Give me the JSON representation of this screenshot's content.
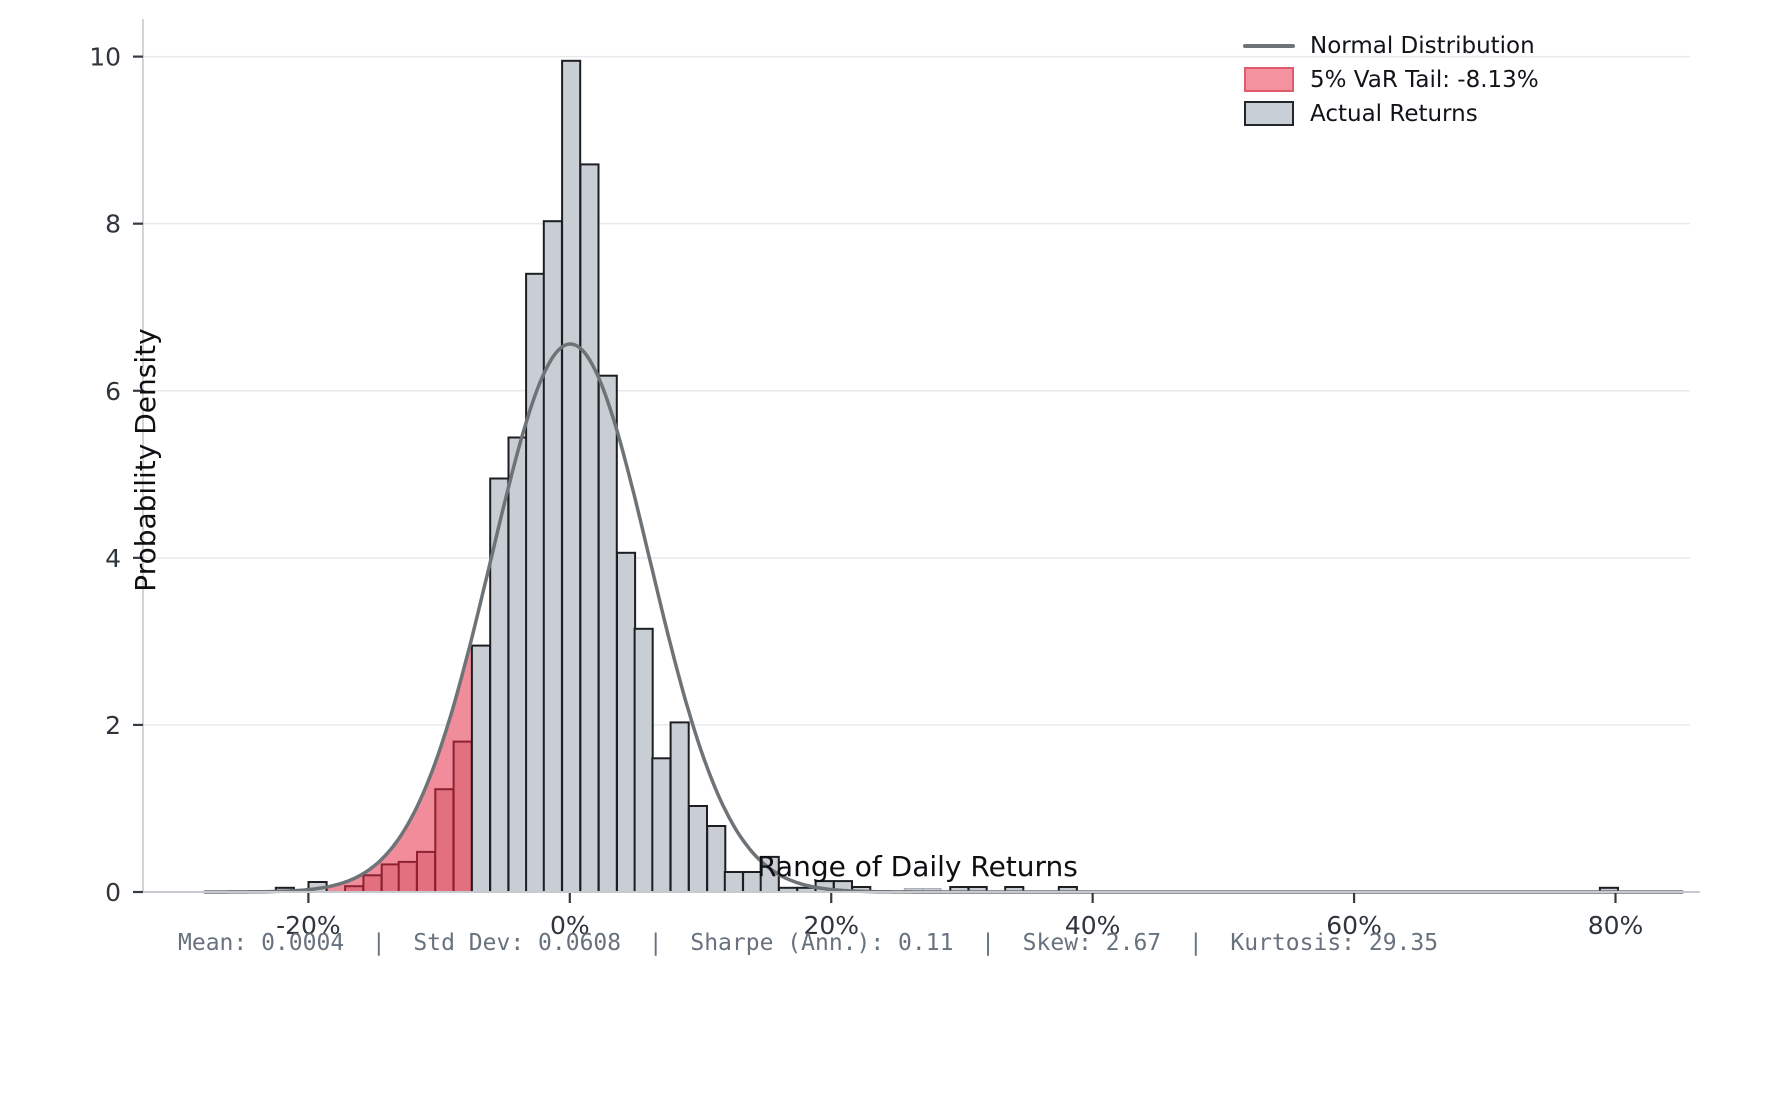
{
  "legend": {
    "items": [
      {
        "label": "Normal Distribution",
        "type": "line",
        "color": "#6e7378",
        "border": "#6e7378"
      },
      {
        "label": "5% VaR Tail: -8.13%",
        "type": "patch",
        "color": "#f4929f",
        "border": "#df5a6b"
      },
      {
        "label": "Actual Returns",
        "type": "patch",
        "color": "#c9cfd6",
        "border": "#23262a"
      }
    ]
  },
  "stats_line": "Mean: 0.0004  |  Std Dev: 0.0608  |  Sharpe (Ann.): 0.11  |  Skew: 2.67  |  Kurtosis: 29.35",
  "stats": {
    "mean": "0.0004",
    "std_dev": "0.0608",
    "sharpe_ann": "0.11",
    "skew": "2.67",
    "kurtosis": "29.35"
  },
  "chart_data": {
    "type": "bar",
    "subtype": "histogram-with-normal-overlay",
    "title": "",
    "xlabel": "Range of Daily Returns",
    "ylabel": "Probability Density",
    "legend_position": "upper right",
    "grid": "horizontal-only",
    "xlim_pct": [
      -32.5,
      85.7
    ],
    "ylim": [
      0,
      10.45
    ],
    "x_ticks": [
      {
        "value": -20,
        "label": "-20%"
      },
      {
        "value": 0,
        "label": "0%"
      },
      {
        "value": 20,
        "label": "20%"
      },
      {
        "value": 40,
        "label": "40%"
      },
      {
        "value": 60,
        "label": "60%"
      },
      {
        "value": 80,
        "label": "80%"
      }
    ],
    "y_ticks": [
      {
        "value": 0,
        "label": "0"
      },
      {
        "value": 2,
        "label": "2"
      },
      {
        "value": 4,
        "label": "4"
      },
      {
        "value": 6,
        "label": "6"
      },
      {
        "value": 8,
        "label": "8"
      },
      {
        "value": 10,
        "label": "10"
      }
    ],
    "bin_width_pct": 1.385,
    "bars": [
      {
        "c": -21.8,
        "h": 0.05,
        "t": "normal"
      },
      {
        "c": -19.3,
        "h": 0.12,
        "t": "normal"
      },
      {
        "c": -16.5,
        "h": 0.07,
        "t": "tail"
      },
      {
        "c": -15.1,
        "h": 0.2,
        "t": "tail"
      },
      {
        "c": -13.7,
        "h": 0.33,
        "t": "tail"
      },
      {
        "c": -12.4,
        "h": 0.36,
        "t": "tail"
      },
      {
        "c": -11.0,
        "h": 0.48,
        "t": "tail"
      },
      {
        "c": -9.6,
        "h": 1.23,
        "t": "tail"
      },
      {
        "c": -8.2,
        "h": 1.8,
        "t": "tail"
      },
      {
        "c": -6.8,
        "h": 2.95,
        "t": "normal"
      },
      {
        "c": -5.4,
        "h": 4.95,
        "t": "normal"
      },
      {
        "c": -4.0,
        "h": 5.44,
        "t": "normal"
      },
      {
        "c": -2.65,
        "h": 7.4,
        "t": "normal"
      },
      {
        "c": -1.3,
        "h": 8.03,
        "t": "normal"
      },
      {
        "c": 0.1,
        "h": 9.95,
        "t": "normal"
      },
      {
        "c": 1.5,
        "h": 8.71,
        "t": "normal"
      },
      {
        "c": 2.9,
        "h": 6.18,
        "t": "normal"
      },
      {
        "c": 4.3,
        "h": 4.06,
        "t": "normal"
      },
      {
        "c": 5.65,
        "h": 3.15,
        "t": "normal"
      },
      {
        "c": 7.0,
        "h": 1.6,
        "t": "normal"
      },
      {
        "c": 8.4,
        "h": 2.03,
        "t": "normal"
      },
      {
        "c": 9.8,
        "h": 1.03,
        "t": "normal"
      },
      {
        "c": 11.2,
        "h": 0.79,
        "t": "normal"
      },
      {
        "c": 12.55,
        "h": 0.24,
        "t": "normal"
      },
      {
        "c": 13.95,
        "h": 0.24,
        "t": "normal"
      },
      {
        "c": 15.3,
        "h": 0.42,
        "t": "normal"
      },
      {
        "c": 16.7,
        "h": 0.05,
        "t": "normal"
      },
      {
        "c": 18.1,
        "h": 0.05,
        "t": "normal"
      },
      {
        "c": 19.5,
        "h": 0.13,
        "t": "normal"
      },
      {
        "c": 20.9,
        "h": 0.13,
        "t": "normal"
      },
      {
        "c": 22.3,
        "h": 0.06,
        "t": "normal"
      },
      {
        "c": 26.3,
        "h": 0.04,
        "t": "faint"
      },
      {
        "c": 27.7,
        "h": 0.04,
        "t": "faint"
      },
      {
        "c": 29.8,
        "h": 0.06,
        "t": "normal"
      },
      {
        "c": 31.2,
        "h": 0.06,
        "t": "normal"
      },
      {
        "c": 34.0,
        "h": 0.06,
        "t": "normal"
      },
      {
        "c": 38.1,
        "h": 0.06,
        "t": "normal"
      },
      {
        "c": 79.5,
        "h": 0.05,
        "t": "normal"
      }
    ],
    "normal_curve": {
      "mean": 0.0004,
      "std": 0.0608,
      "peak_density": 6.56,
      "x_start_pct": -27.9,
      "x_end_pct": 85.3
    },
    "var_threshold_pct": -8.13,
    "tail_fill_end_pct": -7.51,
    "colors": {
      "bar_fill": "#c9cdd4",
      "bar_edge": "#1c1e22",
      "tail_bar_fill": "#e2707e",
      "tail_bar_edge": "#8c2231",
      "tail_area_fill": "#f18c9a",
      "faint_bar_fill": "#d9dde2",
      "faint_bar_edge": "#a8adb4",
      "curve": "#6e7378",
      "grid": "#e8e9eb",
      "spine": "#c6c9cd",
      "tick": "#333a42",
      "tick_label": "#2f353c"
    }
  }
}
